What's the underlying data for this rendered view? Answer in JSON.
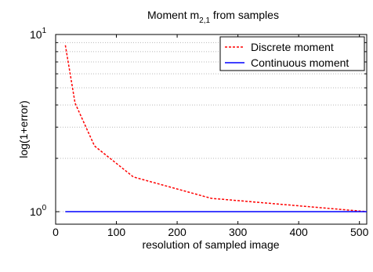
{
  "chart_data": {
    "type": "line",
    "title": "Moment m",
    "title_subscript": "2,1",
    "title_suffix": " from samples",
    "xlabel": "resolution of sampled image",
    "ylabel": "log(1+error)",
    "xlim": [
      0,
      512
    ],
    "ylim": [
      0.85,
      10
    ],
    "yscale": "log",
    "xticks": [
      0,
      100,
      200,
      300,
      400,
      500
    ],
    "xtick_labels": [
      "0",
      "100",
      "200",
      "300",
      "400",
      "500"
    ],
    "yticks": [
      1,
      10
    ],
    "ytick_labels": [
      {
        "base": "10",
        "exp": "0"
      },
      {
        "base": "10",
        "exp": "1"
      }
    ],
    "grid": "y-dotted",
    "legend_position": "top-right",
    "series": [
      {
        "name": "Discrete moment",
        "color": "#ff0000",
        "style": "dashed",
        "x": [
          16,
          32,
          64,
          128,
          256,
          512
        ],
        "y": [
          8.7,
          4.1,
          2.35,
          1.57,
          1.19,
          1.0
        ]
      },
      {
        "name": "Continuous moment",
        "color": "#0000ff",
        "style": "solid",
        "x": [
          16,
          512
        ],
        "y": [
          1.0,
          1.0
        ]
      }
    ]
  }
}
